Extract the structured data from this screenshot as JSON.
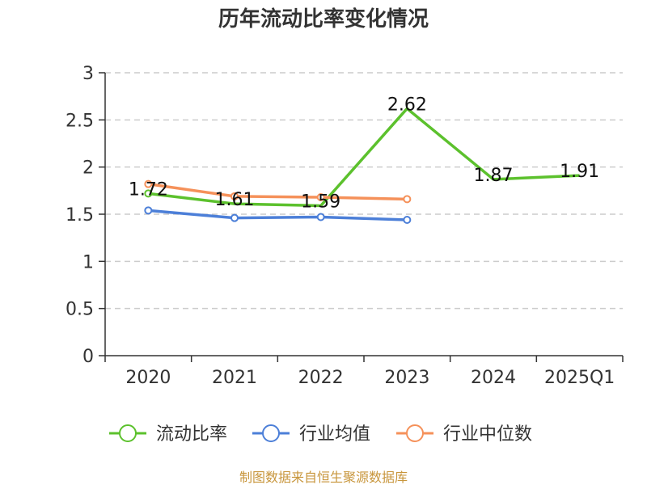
{
  "chart_data": {
    "type": "line",
    "title": "历年流动比率变化情况",
    "categories": [
      "2020",
      "2021",
      "2022",
      "2023",
      "2024",
      "2025Q1"
    ],
    "ylim": [
      0,
      3
    ],
    "yticks": [
      "0",
      "0.5",
      "1",
      "1.5",
      "2",
      "2.5",
      "3"
    ],
    "grid": true,
    "legend_position": "bottom",
    "series": [
      {
        "name": "流动比率",
        "color": "#5cc12d",
        "values": [
          1.72,
          1.61,
          1.59,
          2.62,
          1.87,
          1.91
        ],
        "labels": [
          "1.72",
          "1.61",
          "1.59",
          "2.62",
          "1.87",
          "1.91"
        ],
        "markers": [
          true,
          false,
          false,
          false,
          false,
          false
        ]
      },
      {
        "name": "行业均值",
        "color": "#4c7fd8",
        "values": [
          1.54,
          1.46,
          1.47,
          1.44,
          null,
          null
        ],
        "markers": [
          true,
          true,
          true,
          true,
          false,
          false
        ]
      },
      {
        "name": "行业中位数",
        "color": "#f5915a",
        "values": [
          1.82,
          1.69,
          1.68,
          1.66,
          null,
          null
        ],
        "markers": [
          true,
          true,
          true,
          true,
          false,
          false
        ]
      }
    ]
  },
  "source": {
    "text": "制图数据来自恒生聚源数据库",
    "color": "#c8963c"
  }
}
